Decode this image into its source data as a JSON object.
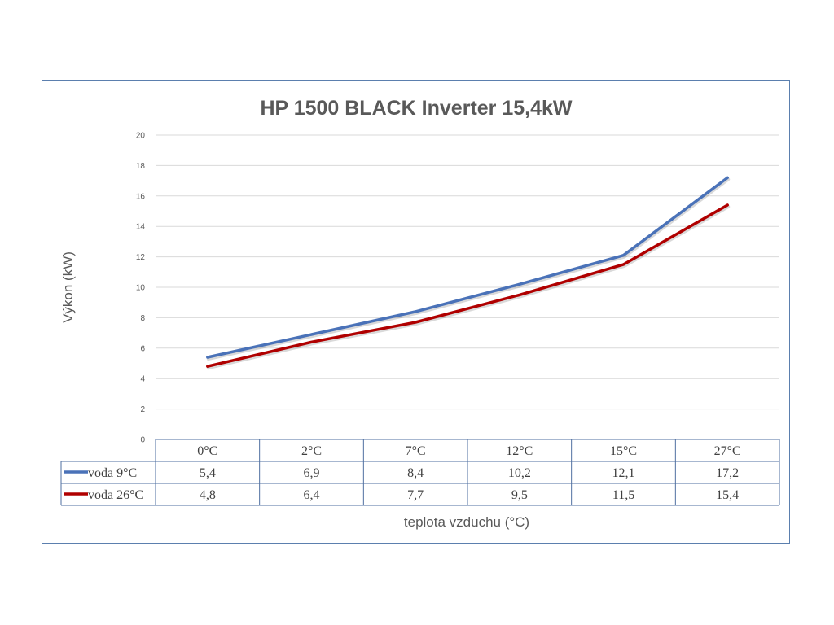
{
  "chart_data": {
    "type": "line",
    "title": "HP 1500 BLACK Inverter 15,4kW",
    "xlabel": "teplota vzduchu (°C)",
    "ylabel": "Výkon (kW)",
    "categories": [
      "0°C",
      "2°C",
      "7°C",
      "12°C",
      "15°C",
      "27°C"
    ],
    "ylim": [
      0,
      20
    ],
    "yticks": [
      "0",
      "2",
      "4",
      "6",
      "8",
      "10",
      "12",
      "14",
      "16",
      "18",
      "20"
    ],
    "grid": true,
    "legend": "data-table",
    "series": [
      {
        "name": "voda 9°C",
        "color": "#4a72b8",
        "values": [
          5.4,
          6.9,
          8.4,
          10.2,
          12.1,
          17.2
        ],
        "labels": [
          "5,4",
          "6,9",
          "8,4",
          "10,2",
          "12,1",
          "17,2"
        ]
      },
      {
        "name": "voda 26°C",
        "color": "#b00000",
        "values": [
          4.8,
          6.4,
          7.7,
          9.5,
          11.5,
          15.4
        ],
        "labels": [
          "4,8",
          "6,4",
          "7,7",
          "9,5",
          "11,5",
          "15,4"
        ]
      }
    ]
  }
}
